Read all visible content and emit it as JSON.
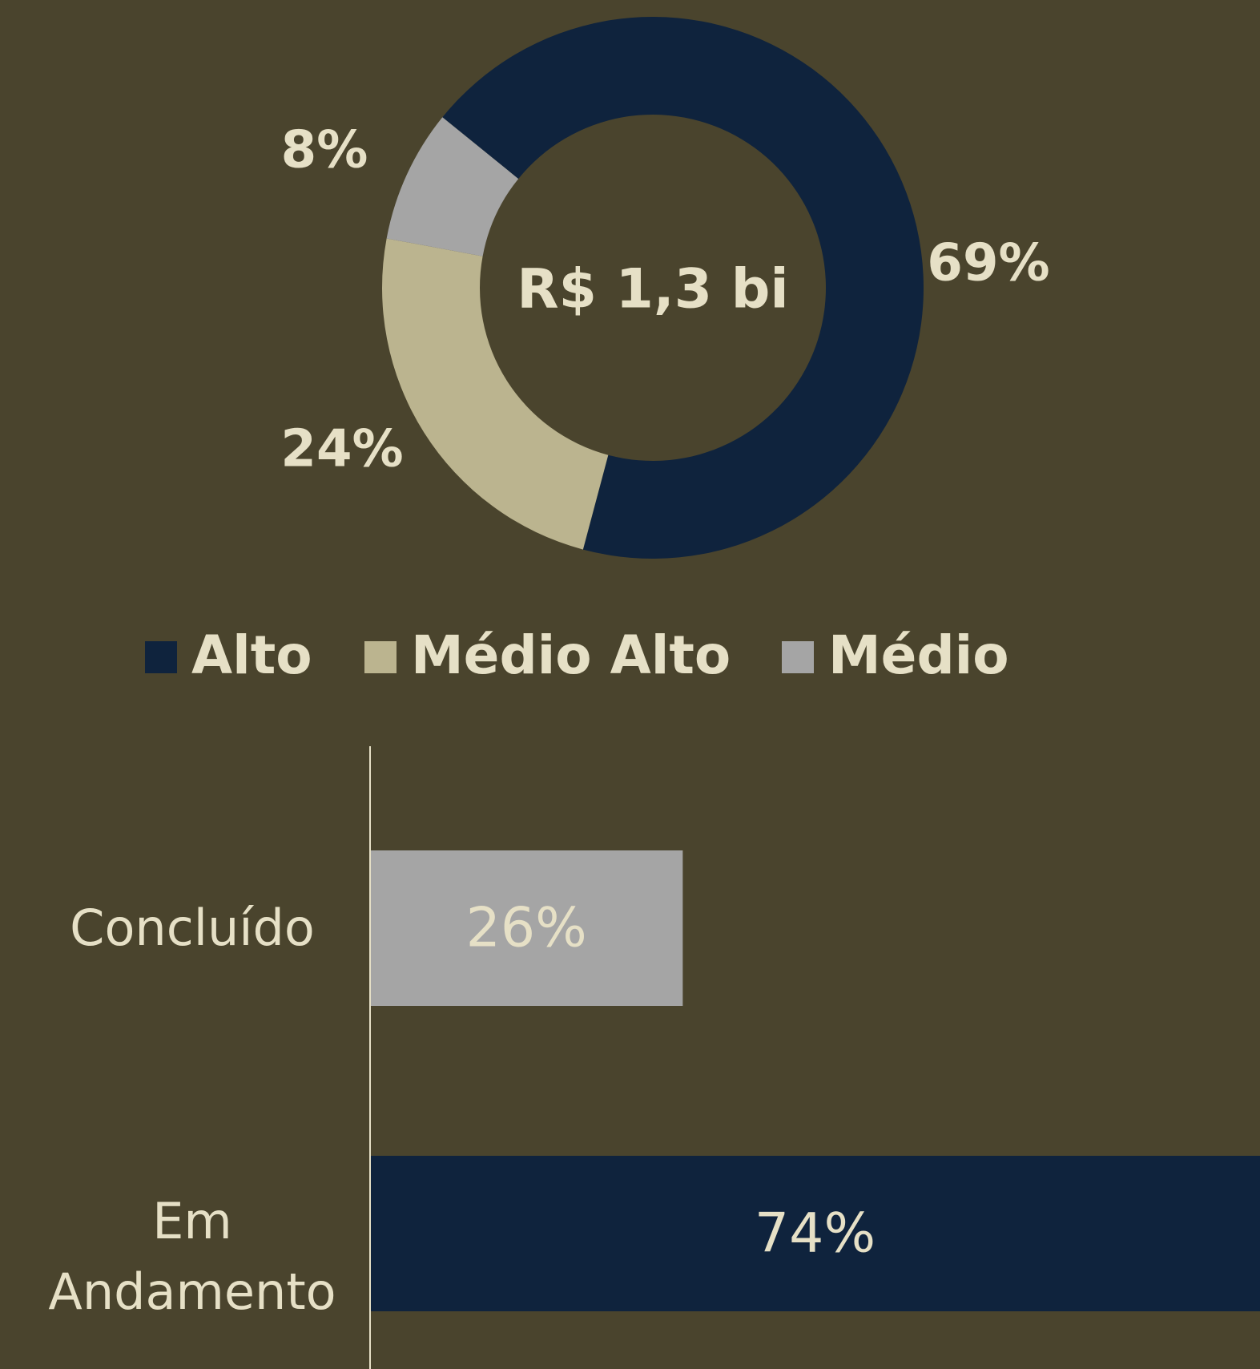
{
  "chart_data": [
    {
      "type": "donut",
      "center_label": "R$ 1,3 bi",
      "categories": [
        "Alto",
        "Médio Alto",
        "Médio"
      ],
      "values": [
        69,
        24,
        8
      ],
      "value_labels": [
        "69%",
        "24%",
        "8%"
      ],
      "colors": [
        "#0f233d",
        "#bbb48f",
        "#a5a5a5"
      ],
      "legend": "bottom"
    },
    {
      "type": "hbar",
      "categories": [
        "Concluído",
        "Em Andamento"
      ],
      "values": [
        26,
        74
      ],
      "value_labels": [
        "26%",
        "74%"
      ],
      "colors": [
        "#a5a5a5",
        "#0f233d"
      ],
      "xlim": [
        0,
        74
      ]
    }
  ]
}
